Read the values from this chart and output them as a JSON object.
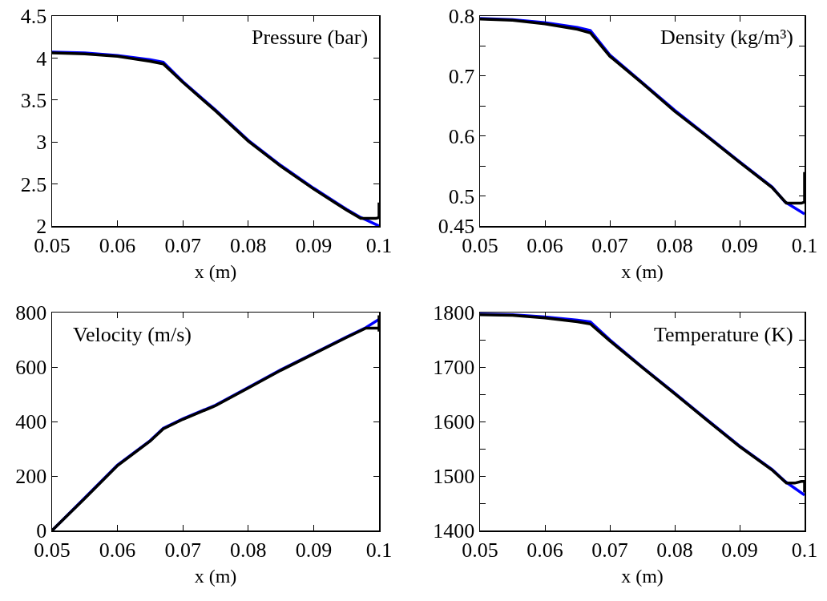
{
  "chart_data": [
    {
      "type": "line",
      "title": "Pressure (bar)",
      "xlabel": "x (m)",
      "xlim": [
        0.05,
        0.1
      ],
      "xticks": [
        0.05,
        0.06,
        0.07,
        0.08,
        0.09,
        0.1
      ],
      "ylim": [
        2,
        4.5
      ],
      "yticks": [
        2,
        2.5,
        3,
        3.5,
        4,
        4.5
      ],
      "grid": false,
      "series": [
        {
          "color": "#0000ff",
          "x": [
            0.05,
            0.055,
            0.06,
            0.065,
            0.067,
            0.07,
            0.075,
            0.08,
            0.085,
            0.09,
            0.095,
            0.097,
            0.1
          ],
          "values": [
            4.07,
            4.06,
            4.03,
            3.98,
            3.95,
            3.72,
            3.38,
            3.02,
            2.72,
            2.45,
            2.2,
            2.11,
            2.0
          ]
        },
        {
          "color": "#000000",
          "x": [
            0.05,
            0.055,
            0.06,
            0.065,
            0.067,
            0.07,
            0.075,
            0.08,
            0.085,
            0.09,
            0.095,
            0.0972,
            0.0995,
            0.1,
            0.1,
            0.1
          ],
          "values": [
            4.06,
            4.05,
            4.02,
            3.96,
            3.93,
            3.71,
            3.37,
            3.01,
            2.71,
            2.44,
            2.19,
            2.09,
            2.09,
            2.1,
            2.28,
            2.1
          ]
        }
      ]
    },
    {
      "type": "line",
      "title": "Density (kg/m³)",
      "xlabel": "x (m)",
      "xlim": [
        0.05,
        0.1
      ],
      "xticks": [
        0.05,
        0.06,
        0.07,
        0.08,
        0.09,
        0.1
      ],
      "ylim": [
        0.45,
        0.8
      ],
      "yticks": [
        0.45,
        0.5,
        {
          "value": 0.55,
          "label": null
        },
        0.6,
        {
          "value": 0.65,
          "label": null
        },
        0.7,
        {
          "value": 0.75,
          "label": null
        },
        0.8
      ],
      "grid": false,
      "series": [
        {
          "color": "#0000ff",
          "x": [
            0.05,
            0.055,
            0.06,
            0.065,
            0.067,
            0.07,
            0.075,
            0.08,
            0.085,
            0.09,
            0.095,
            0.097,
            0.1
          ],
          "values": [
            0.796,
            0.794,
            0.789,
            0.781,
            0.776,
            0.735,
            0.689,
            0.643,
            0.6,
            0.557,
            0.515,
            0.49,
            0.47
          ]
        },
        {
          "color": "#000000",
          "x": [
            0.05,
            0.055,
            0.06,
            0.065,
            0.067,
            0.07,
            0.075,
            0.08,
            0.085,
            0.09,
            0.095,
            0.0972,
            0.0995,
            0.1,
            0.1,
            0.1
          ],
          "values": [
            0.795,
            0.793,
            0.787,
            0.778,
            0.772,
            0.733,
            0.688,
            0.641,
            0.599,
            0.556,
            0.514,
            0.488,
            0.488,
            0.49,
            0.54,
            0.49
          ]
        }
      ]
    },
    {
      "type": "line",
      "title": "Velocity (m/s)",
      "xlabel": "x (m)",
      "xlim": [
        0.05,
        0.1
      ],
      "xticks": [
        0.05,
        0.06,
        0.07,
        0.08,
        0.09,
        0.1
      ],
      "ylim": [
        0,
        800
      ],
      "yticks": [
        0,
        200,
        400,
        600,
        800
      ],
      "grid": false,
      "series": [
        {
          "color": "#0000ff",
          "x": [
            0.05,
            0.055,
            0.06,
            0.065,
            0.067,
            0.07,
            0.075,
            0.08,
            0.085,
            0.09,
            0.095,
            0.098,
            0.1
          ],
          "values": [
            0,
            120,
            240,
            330,
            375,
            410,
            460,
            525,
            590,
            650,
            710,
            745,
            775
          ]
        },
        {
          "color": "#000000",
          "x": [
            0.05,
            0.055,
            0.06,
            0.065,
            0.067,
            0.07,
            0.075,
            0.08,
            0.085,
            0.09,
            0.095,
            0.098,
            0.1,
            0.1,
            0.1
          ],
          "values": [
            0,
            118,
            238,
            328,
            373,
            408,
            458,
            523,
            588,
            648,
            708,
            743,
            743,
            790,
            730
          ]
        }
      ]
    },
    {
      "type": "line",
      "title": "Temperature (K)",
      "xlabel": "x (m)",
      "xlim": [
        0.05,
        0.1
      ],
      "xticks": [
        0.05,
        0.06,
        0.07,
        0.08,
        0.09,
        0.1
      ],
      "ylim": [
        1400,
        1800
      ],
      "yticks": [
        1400,
        {
          "value": 1450,
          "label": null
        },
        1500,
        {
          "value": 1550,
          "label": null
        },
        1600,
        {
          "value": 1650,
          "label": null
        },
        1700,
        {
          "value": 1750,
          "label": null
        },
        1800
      ],
      "grid": false,
      "series": [
        {
          "color": "#0000ff",
          "x": [
            0.05,
            0.055,
            0.06,
            0.065,
            0.067,
            0.07,
            0.075,
            0.08,
            0.085,
            0.09,
            0.095,
            0.097,
            0.1
          ],
          "values": [
            1797,
            1796,
            1792,
            1786,
            1783,
            1750,
            1700,
            1652,
            1603,
            1555,
            1512,
            1490,
            1465
          ]
        },
        {
          "color": "#000000",
          "x": [
            0.05,
            0.055,
            0.06,
            0.065,
            0.067,
            0.07,
            0.075,
            0.08,
            0.085,
            0.09,
            0.095,
            0.0972,
            0.0985,
            0.0995,
            0.1,
            0.1
          ],
          "values": [
            1796,
            1795,
            1790,
            1783,
            1779,
            1748,
            1699,
            1651,
            1602,
            1554,
            1511,
            1487,
            1487,
            1490,
            1490,
            1470
          ]
        }
      ]
    }
  ]
}
